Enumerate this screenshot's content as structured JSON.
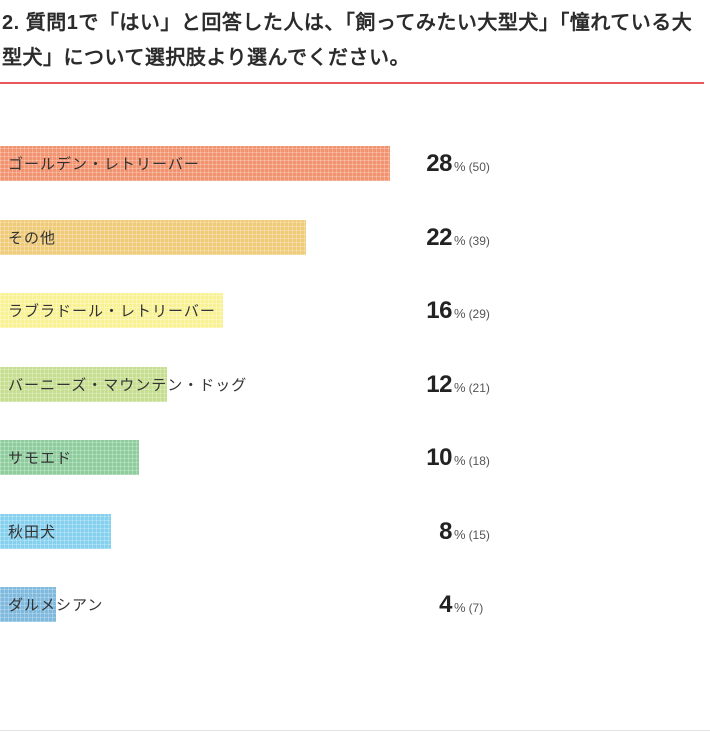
{
  "header": {
    "title": "2. 質問1で「はい」と回答した人は、「飼ってみたい大型犬」「憧れている大型犬」について選択肢より選んでください。",
    "underline_color": "#e8565c"
  },
  "chart_data": {
    "type": "bar",
    "orientation": "horizontal",
    "title": "2. 質問1で「はい」と回答した人は、「飼ってみたい大型犬」「憧れている大型犬」について選択肢より選んでください。",
    "unit": "%",
    "categories": [
      "ゴールデン・レトリーバー",
      "その他",
      "ラブラドール・レトリーバー",
      "バーニーズ・マウンテン・ドッグ",
      "サモエド",
      "秋田犬",
      "ダルメシアン"
    ],
    "values": [
      28,
      22,
      16,
      12,
      10,
      8,
      4
    ],
    "counts": [
      50,
      39,
      29,
      21,
      18,
      15,
      7
    ],
    "count_labels": [
      "(50)",
      "(39)",
      "(29)",
      "(21)",
      "(18)",
      "(15)",
      "(7)"
    ],
    "bar_colors": [
      "#f2936f",
      "#efcb79",
      "#f9f295",
      "#c5de8f",
      "#8ecc9d",
      "#85d0ef",
      "#7fb9dd"
    ],
    "xlim": [
      0,
      28
    ],
    "grid": false,
    "legend": false
  }
}
